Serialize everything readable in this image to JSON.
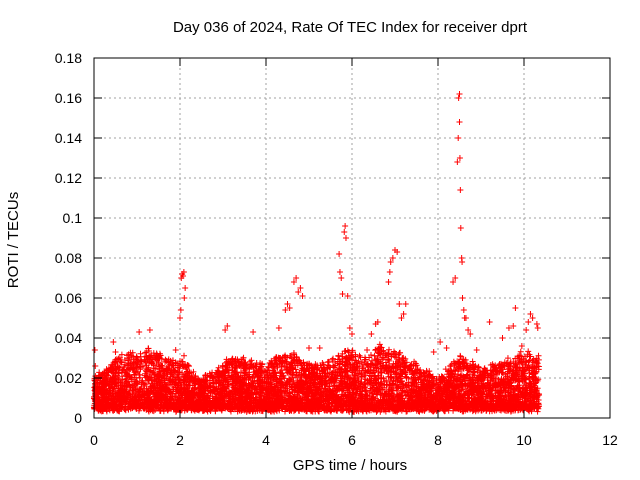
{
  "chart_data": {
    "type": "scatter",
    "title": "Day 036 of 2024, Rate Of TEC Index for receiver dprt",
    "xlabel": "GPS time / hours",
    "ylabel": "ROTI / TECUs",
    "xlim": [
      0,
      12
    ],
    "ylim": [
      0,
      0.18
    ],
    "xticks": [
      0,
      2,
      4,
      6,
      8,
      10,
      12
    ],
    "xtick_labels": [
      "0",
      "2",
      "4",
      "6",
      "8",
      "10",
      "12"
    ],
    "yticks": [
      0,
      0.02,
      0.04,
      0.06,
      0.08,
      0.1,
      0.12,
      0.14,
      0.16,
      0.18
    ],
    "ytick_labels": [
      "0",
      "0.02",
      "0.04",
      "0.06",
      "0.08",
      "0.1",
      "0.12",
      "0.14",
      "0.16",
      "0.18"
    ],
    "grid": true,
    "marker": "+",
    "color": "#ff0000",
    "data_range_hours": [
      0,
      10.35
    ],
    "series": [
      {
        "name": "ROTI",
        "points": [
          [
            0.02,
            0.034
          ],
          [
            0.03,
            0.026
          ],
          [
            0.08,
            0.017
          ],
          [
            0.45,
            0.038
          ],
          [
            0.5,
            0.033
          ],
          [
            1.05,
            0.043
          ],
          [
            1.3,
            0.044
          ],
          [
            1.9,
            0.034
          ],
          [
            2.0,
            0.05
          ],
          [
            2.02,
            0.054
          ],
          [
            2.03,
            0.07
          ],
          [
            2.05,
            0.072
          ],
          [
            2.07,
            0.071
          ],
          [
            2.09,
            0.073
          ],
          [
            2.1,
            0.06
          ],
          [
            2.12,
            0.065
          ],
          [
            3.05,
            0.044
          ],
          [
            3.1,
            0.046
          ],
          [
            3.7,
            0.043
          ],
          [
            4.3,
            0.045
          ],
          [
            4.45,
            0.054
          ],
          [
            4.5,
            0.057
          ],
          [
            4.55,
            0.055
          ],
          [
            4.65,
            0.068
          ],
          [
            4.7,
            0.07
          ],
          [
            4.75,
            0.063
          ],
          [
            4.8,
            0.065
          ],
          [
            4.85,
            0.061
          ],
          [
            5.0,
            0.035
          ],
          [
            5.25,
            0.035
          ],
          [
            5.7,
            0.082
          ],
          [
            5.72,
            0.073
          ],
          [
            5.75,
            0.07
          ],
          [
            5.78,
            0.062
          ],
          [
            5.82,
            0.093
          ],
          [
            5.84,
            0.096
          ],
          [
            5.86,
            0.09
          ],
          [
            5.9,
            0.061
          ],
          [
            5.95,
            0.045
          ],
          [
            6.0,
            0.042
          ],
          [
            6.35,
            0.034
          ],
          [
            6.45,
            0.042
          ],
          [
            6.55,
            0.047
          ],
          [
            6.6,
            0.048
          ],
          [
            6.85,
            0.068
          ],
          [
            6.88,
            0.073
          ],
          [
            6.9,
            0.078
          ],
          [
            6.95,
            0.08
          ],
          [
            7.0,
            0.084
          ],
          [
            7.05,
            0.083
          ],
          [
            7.1,
            0.057
          ],
          [
            7.15,
            0.05
          ],
          [
            7.2,
            0.052
          ],
          [
            7.25,
            0.057
          ],
          [
            7.9,
            0.033
          ],
          [
            8.05,
            0.038
          ],
          [
            8.2,
            0.035
          ],
          [
            8.35,
            0.068
          ],
          [
            8.4,
            0.07
          ],
          [
            8.45,
            0.128
          ],
          [
            8.47,
            0.14
          ],
          [
            8.48,
            0.16
          ],
          [
            8.5,
            0.162
          ],
          [
            8.5,
            0.148
          ],
          [
            8.51,
            0.13
          ],
          [
            8.52,
            0.114
          ],
          [
            8.53,
            0.095
          ],
          [
            8.55,
            0.08
          ],
          [
            8.56,
            0.078
          ],
          [
            8.57,
            0.06
          ],
          [
            8.6,
            0.054
          ],
          [
            8.62,
            0.05
          ],
          [
            8.65,
            0.05
          ],
          [
            8.7,
            0.044
          ],
          [
            8.75,
            0.042
          ],
          [
            8.9,
            0.034
          ],
          [
            9.2,
            0.048
          ],
          [
            9.5,
            0.04
          ],
          [
            9.65,
            0.045
          ],
          [
            9.75,
            0.046
          ],
          [
            9.8,
            0.055
          ],
          [
            9.95,
            0.036
          ],
          [
            10.05,
            0.044
          ],
          [
            10.1,
            0.048
          ],
          [
            10.15,
            0.052
          ],
          [
            10.2,
            0.05
          ],
          [
            10.3,
            0.047
          ],
          [
            10.32,
            0.045
          ]
        ]
      }
    ]
  }
}
